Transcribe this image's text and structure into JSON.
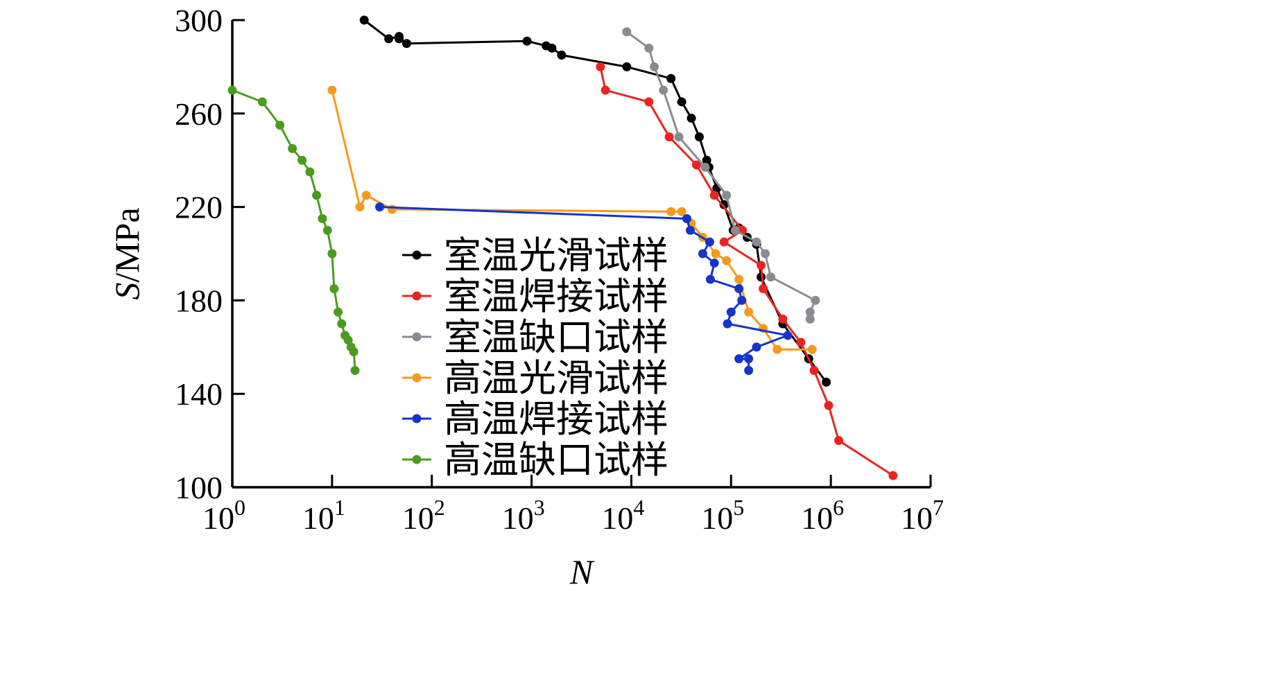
{
  "chart_data": {
    "type": "line",
    "xlabel": "N",
    "ylabel": "S/MPa",
    "x_scale": "log",
    "x_tick_base": "10",
    "x_tick_exponents": [
      "0",
      "1",
      "2",
      "3",
      "4",
      "5",
      "6",
      "7"
    ],
    "xlim": [
      1,
      10000000
    ],
    "y_ticks": [
      "100",
      "140",
      "180",
      "220",
      "260",
      "300"
    ],
    "ylim": [
      100,
      300
    ],
    "grid": false,
    "legend": "center",
    "series": [
      {
        "name": "室温光滑试样",
        "color": "#000000",
        "x": [
          21,
          37,
          47,
          47,
          56,
          900,
          1400,
          1600,
          2000,
          9000,
          25000,
          32000,
          40000,
          48000,
          57000,
          60000,
          72000,
          85000,
          105000,
          120000,
          145000,
          180000,
          200000,
          330000,
          600000,
          900000
        ],
        "y": [
          300,
          292,
          293,
          292,
          290,
          291,
          289,
          288,
          285,
          280,
          275,
          265,
          258,
          250,
          240,
          237,
          228,
          221,
          210,
          211,
          207,
          204,
          190,
          170,
          155,
          145
        ]
      },
      {
        "name": "室温焊接试样",
        "color": "#e8251f",
        "x": [
          4900,
          5500,
          15000,
          24000,
          45000,
          68000,
          130000,
          85000,
          200000,
          210000,
          330000,
          500000,
          680000,
          950000,
          1200000,
          4200000
        ],
        "y": [
          280,
          270,
          265,
          250,
          238,
          225,
          210,
          205,
          195,
          185,
          172,
          162,
          150,
          135,
          120,
          105
        ]
      },
      {
        "name": "室温缺口试样",
        "color": "#888c90",
        "x": [
          9000,
          15000,
          17000,
          21000,
          30000,
          55000,
          90000,
          110000,
          180000,
          220000,
          250000,
          700000,
          620000,
          620000
        ],
        "y": [
          295,
          288,
          280,
          270,
          250,
          237,
          225,
          210,
          205,
          200,
          190,
          180,
          175,
          172
        ]
      },
      {
        "name": "高温光滑试样",
        "color": "#f59a1e",
        "x": [
          10,
          19,
          22,
          40,
          25000,
          32000,
          40000,
          52000,
          70000,
          90000,
          120000,
          150000,
          210000,
          290000,
          650000
        ],
        "y": [
          270,
          220,
          225,
          219,
          218,
          218,
          213,
          207,
          200,
          197,
          189,
          175,
          168,
          159,
          159
        ]
      },
      {
        "name": "高温焊接试样",
        "color": "#1534c8",
        "x": [
          30,
          36000,
          39000,
          61000,
          52000,
          68000,
          62000,
          120000,
          128000,
          100000,
          92000,
          370000,
          180000,
          120000,
          150000,
          150000
        ],
        "y": [
          220,
          215,
          210,
          205,
          200,
          196,
          189,
          185,
          180,
          175,
          170,
          165,
          160,
          155,
          155,
          150
        ]
      },
      {
        "name": "高温缺口试样",
        "color": "#4a9c1e",
        "x": [
          1,
          2,
          3,
          4,
          5,
          6,
          7,
          8,
          9,
          10,
          10.5,
          11.5,
          12.5,
          13.5,
          14.5,
          15.5,
          16.5,
          17
        ],
        "y": [
          270,
          265,
          255,
          245,
          240,
          235,
          225,
          215,
          210,
          200,
          185,
          175,
          170,
          165,
          163,
          160,
          158,
          150
        ]
      }
    ]
  }
}
